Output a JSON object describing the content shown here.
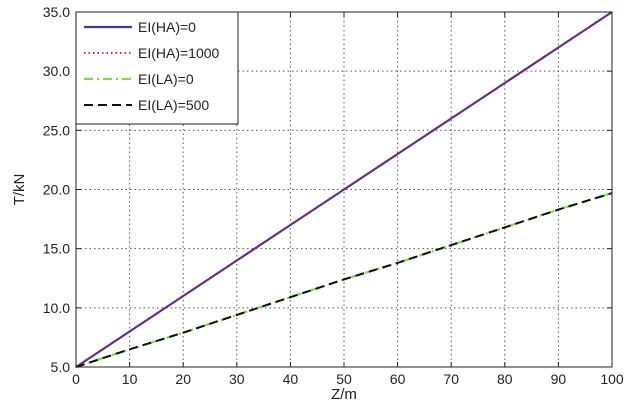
{
  "chart_data": {
    "type": "line",
    "xlabel": "Z/m",
    "ylabel": "T/kN",
    "xlim": [
      0,
      100
    ],
    "ylim": [
      5.0,
      35.0
    ],
    "x_ticks": [
      0,
      10,
      20,
      30,
      40,
      50,
      60,
      70,
      80,
      90,
      100
    ],
    "x_tick_labels": [
      "0",
      "10",
      "20",
      "30",
      "40",
      "50",
      "60",
      "70",
      "80",
      "90",
      "100"
    ],
    "y_ticks": [
      5.0,
      10.0,
      15.0,
      20.0,
      25.0,
      30.0,
      35.0
    ],
    "y_tick_labels": [
      "5.0",
      "10.0",
      "15.0",
      "20.0",
      "25.0",
      "30.0",
      "35.0"
    ],
    "grid": true,
    "legend_position": "top-left",
    "series": [
      {
        "name": "EI(HA)=0",
        "color": "#3a3aa8",
        "style": "solid",
        "x": [
          0,
          10,
          20,
          30,
          40,
          50,
          60,
          70,
          80,
          90,
          100
        ],
        "y": [
          5.0,
          8.0,
          11.0,
          14.0,
          17.0,
          20.0,
          23.0,
          26.0,
          29.0,
          32.0,
          35.0
        ]
      },
      {
        "name": "EI(HA)=1000",
        "color": "#c01818",
        "style": "dotted",
        "x": [
          0,
          10,
          20,
          30,
          40,
          50,
          60,
          70,
          80,
          90,
          100
        ],
        "y": [
          5.0,
          8.0,
          11.0,
          14.0,
          17.0,
          20.0,
          23.0,
          26.0,
          29.0,
          32.0,
          35.0
        ]
      },
      {
        "name": "EI(LA)=0",
        "color": "#7ed957",
        "style": "dashdot",
        "x": [
          0,
          10,
          20,
          30,
          40,
          50,
          60,
          70,
          80,
          90,
          100
        ],
        "y": [
          5.0,
          6.5,
          7.9,
          9.4,
          10.9,
          12.4,
          13.8,
          15.3,
          16.8,
          18.3,
          19.7
        ]
      },
      {
        "name": "EI(LA)=500",
        "color": "#111111",
        "style": "dashed",
        "x": [
          0,
          10,
          20,
          30,
          40,
          50,
          60,
          70,
          80,
          90,
          100
        ],
        "y": [
          5.0,
          6.5,
          7.9,
          9.4,
          10.9,
          12.4,
          13.8,
          15.3,
          16.8,
          18.3,
          19.7
        ]
      }
    ]
  }
}
